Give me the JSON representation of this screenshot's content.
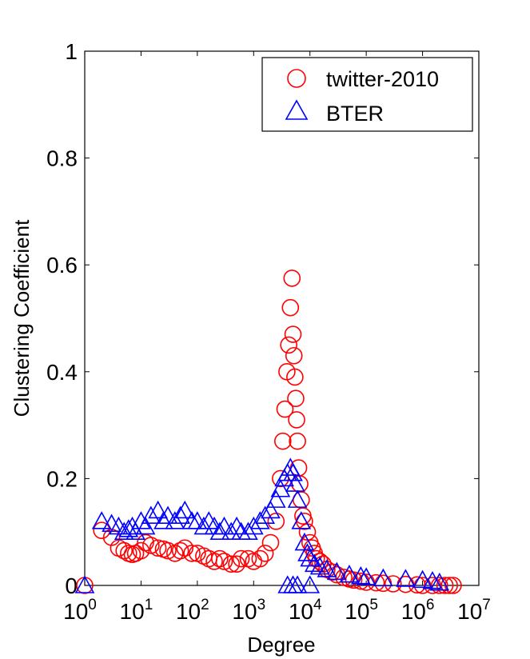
{
  "chart_data": {
    "type": "scatter",
    "xlabel": "Degree",
    "ylabel": "Clustering Coefficient",
    "xscale": "log",
    "xlim": [
      1,
      10000000
    ],
    "ylim": [
      0,
      1
    ],
    "x_ticks": [
      {
        "base": "10",
        "exp": "0"
      },
      {
        "base": "10",
        "exp": "1"
      },
      {
        "base": "10",
        "exp": "2"
      },
      {
        "base": "10",
        "exp": "3"
      },
      {
        "base": "10",
        "exp": "4"
      },
      {
        "base": "10",
        "exp": "5"
      },
      {
        "base": "10",
        "exp": "6"
      },
      {
        "base": "10",
        "exp": "7"
      }
    ],
    "y_ticks": [
      "0",
      "0.2",
      "0.4",
      "0.6",
      "0.8",
      "1"
    ],
    "legend_position": "top-right",
    "colors": {
      "twitter": "#ff0000",
      "bter": "#0000ff"
    },
    "series": [
      {
        "name": "twitter-2010",
        "marker": "circle",
        "color": "#ff0000",
        "x": [
          1,
          2,
          3,
          4,
          5,
          6,
          7,
          8,
          10,
          12,
          15,
          20,
          25,
          30,
          40,
          50,
          60,
          80,
          100,
          130,
          160,
          200,
          250,
          300,
          400,
          500,
          600,
          800,
          1000,
          1300,
          1600,
          2000,
          2500,
          3000,
          3300,
          3600,
          3900,
          4200,
          4500,
          4800,
          5000,
          5200,
          5400,
          5600,
          5800,
          6000,
          6300,
          6600,
          7000,
          7500,
          8000,
          9000,
          10000,
          11000,
          12000,
          13000,
          15000,
          17000,
          20000,
          25000,
          30000,
          40000,
          50000,
          60000,
          80000,
          100000,
          150000,
          200000,
          300000,
          500000,
          800000,
          1000000,
          1500000,
          2000000,
          2500000,
          3000000,
          3500000
        ],
        "y": [
          0,
          0.103,
          0.09,
          0.07,
          0.065,
          0.06,
          0.058,
          0.06,
          0.065,
          0.08,
          0.075,
          0.07,
          0.068,
          0.065,
          0.06,
          0.065,
          0.07,
          0.06,
          0.06,
          0.055,
          0.05,
          0.045,
          0.05,
          0.045,
          0.04,
          0.04,
          0.05,
          0.05,
          0.045,
          0.05,
          0.06,
          0.08,
          0.12,
          0.2,
          0.27,
          0.33,
          0.4,
          0.45,
          0.52,
          0.575,
          0.47,
          0.43,
          0.39,
          0.35,
          0.31,
          0.27,
          0.22,
          0.19,
          0.16,
          0.13,
          0.12,
          0.1,
          0.08,
          0.07,
          0.06,
          0.05,
          0.045,
          0.04,
          0.03,
          0.025,
          0.02,
          0.015,
          0.012,
          0.01,
          0.008,
          0.006,
          0.005,
          0.004,
          0.003,
          0.002,
          0.001,
          0,
          0,
          0,
          0,
          0,
          0
        ]
      },
      {
        "name": "BTER",
        "marker": "triangle",
        "color": "#0000ff",
        "x": [
          1,
          2,
          3,
          4,
          5,
          6,
          7,
          8,
          10,
          12,
          15,
          20,
          25,
          30,
          40,
          50,
          60,
          80,
          100,
          130,
          160,
          200,
          250,
          300,
          400,
          500,
          600,
          800,
          1000,
          1300,
          1600,
          2000,
          2500,
          3000,
          3500,
          4000,
          4500,
          5000,
          5500,
          6000,
          7000,
          8000,
          9000,
          10000,
          12000,
          15000,
          20000,
          30000,
          50000,
          80000,
          100000,
          200000,
          500000,
          1000000,
          1500000,
          2000000,
          4000,
          5000,
          6000,
          10000
        ],
        "y": [
          0,
          0.12,
          0.115,
          0.11,
          0.1,
          0.105,
          0.11,
          0.1,
          0.12,
          0.11,
          0.13,
          0.14,
          0.12,
          0.13,
          0.12,
          0.13,
          0.14,
          0.12,
          0.12,
          0.11,
          0.12,
          0.11,
          0.1,
          0.11,
          0.1,
          0.11,
          0.1,
          0.1,
          0.11,
          0.12,
          0.13,
          0.14,
          0.16,
          0.18,
          0.2,
          0.21,
          0.22,
          0.21,
          0.19,
          0.16,
          0.12,
          0.08,
          0.06,
          0.05,
          0.04,
          0.035,
          0.03,
          0.025,
          0.02,
          0.017,
          0.015,
          0.013,
          0.012,
          0.01,
          0.008,
          0.005,
          0,
          0,
          0,
          0
        ]
      }
    ]
  }
}
